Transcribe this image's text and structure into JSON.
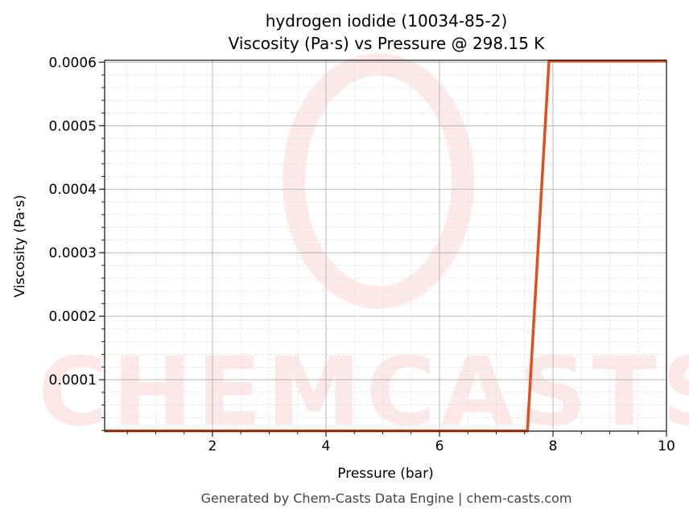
{
  "chart_data": {
    "type": "line",
    "title": "hydrogen iodide (10034-85-2)",
    "subtitle": "Viscosity (Pa·s) vs Pressure @ 298.15 K",
    "xlabel": "Pressure (bar)",
    "ylabel": "Viscosity (Pa·s)",
    "xlim": [
      0.1,
      10
    ],
    "ylim": [
      1.9e-05,
      0.000603
    ],
    "xticks": [
      2,
      4,
      6,
      8,
      10
    ],
    "xtick_labels": [
      "2",
      "4",
      "6",
      "8",
      "10"
    ],
    "yticks": [
      0.0001,
      0.0002,
      0.0003,
      0.0004,
      0.0005,
      0.0006
    ],
    "ytick_labels": [
      "0.0001",
      "0.0002",
      "0.0003",
      "0.0004",
      "0.0005",
      "0.0006"
    ],
    "grid": true,
    "series": [
      {
        "color": "#e0501e",
        "x": [
          0.1,
          7.55,
          7.93,
          10
        ],
        "y": [
          1.95e-05,
          1.95e-05,
          0.000602,
          0.000602
        ]
      }
    ],
    "watermark": "CHEMCASTS",
    "footer": "Generated by Chem-Casts Data Engine | chem-casts.com"
  }
}
